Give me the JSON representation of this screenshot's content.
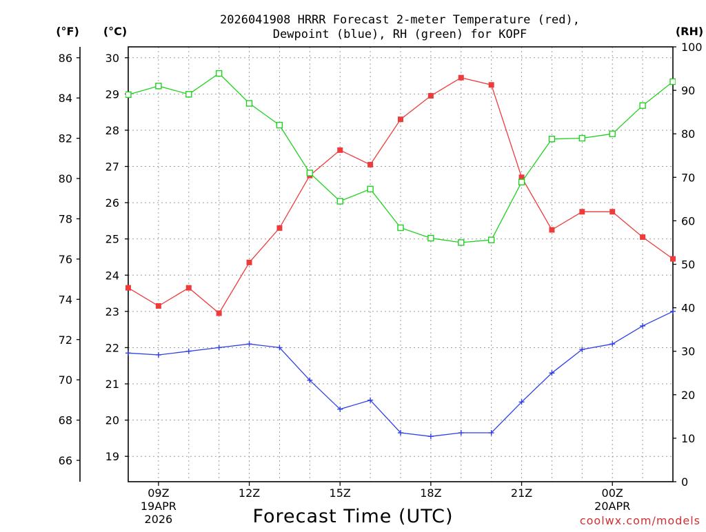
{
  "chart_data": {
    "type": "line",
    "title": "2026041908 HRRR Forecast 2-meter Temperature (red),",
    "title_line2": "Dewpoint (blue), RH (green) for KOPF",
    "xlabel": "Forecast Time (UTC)",
    "credit": "coolwx.com/models",
    "units": {
      "fahrenheit": "(°F)",
      "celsius": "(°C)",
      "rh": "(RH)"
    },
    "x_hours": [
      8,
      9,
      10,
      11,
      12,
      13,
      14,
      15,
      16,
      17,
      18,
      19,
      20,
      21,
      22,
      23,
      24,
      25,
      26
    ],
    "xlim": [
      8,
      26
    ],
    "x_ticks": [
      {
        "hour": 9,
        "label": "09Z",
        "sub1": "19APR",
        "sub2": "2026"
      },
      {
        "hour": 12,
        "label": "12Z",
        "sub1": "",
        "sub2": ""
      },
      {
        "hour": 15,
        "label": "15Z",
        "sub1": "",
        "sub2": ""
      },
      {
        "hour": 18,
        "label": "18Z",
        "sub1": "",
        "sub2": ""
      },
      {
        "hour": 21,
        "label": "21Z",
        "sub1": "",
        "sub2": ""
      },
      {
        "hour": 24,
        "label": "00Z",
        "sub1": "20APR",
        "sub2": ""
      }
    ],
    "y_celsius": {
      "ylim": [
        18.3,
        30.3
      ],
      "ticks": [
        "19",
        "20",
        "21",
        "22",
        "23",
        "24",
        "25",
        "26",
        "27",
        "28",
        "29",
        "30"
      ]
    },
    "y_fahrenheit": {
      "ylim": [
        64.94,
        86.54
      ],
      "ticks": [
        "66",
        "68",
        "70",
        "72",
        "74",
        "76",
        "78",
        "80",
        "82",
        "84",
        "86"
      ]
    },
    "y_rh": {
      "ylim": [
        0,
        100
      ],
      "ticks": [
        "0",
        "10",
        "20",
        "30",
        "40",
        "50",
        "60",
        "70",
        "80",
        "90",
        "100"
      ]
    },
    "series": [
      {
        "name": "2-meter Temperature",
        "unit": "C",
        "color": "#ee3b3b",
        "marker": "filled-square",
        "values": [
          23.65,
          23.15,
          23.65,
          22.95,
          24.35,
          25.3,
          26.75,
          27.45,
          27.05,
          28.3,
          28.95,
          29.45,
          29.25,
          26.7,
          25.25,
          25.75,
          25.75,
          25.05,
          24.45
        ]
      },
      {
        "name": "Dewpoint",
        "unit": "C",
        "color": "#2f3ee8",
        "marker": "plus",
        "values": [
          21.85,
          21.8,
          21.9,
          22.0,
          22.1,
          22.0,
          21.1,
          20.3,
          20.55,
          19.65,
          19.55,
          19.65,
          19.65,
          20.5,
          21.3,
          21.95,
          22.1,
          22.6,
          23.0
        ]
      },
      {
        "name": "Relative Humidity",
        "unit": "%",
        "color": "#1fd11f",
        "marker": "open-square",
        "values": [
          89.0,
          91.0,
          89.1,
          93.9,
          87.0,
          82.0,
          71.0,
          64.5,
          67.3,
          58.4,
          56.0,
          55.0,
          55.6,
          68.9,
          78.8,
          79.0,
          80.0,
          86.5,
          92.0
        ]
      }
    ]
  }
}
